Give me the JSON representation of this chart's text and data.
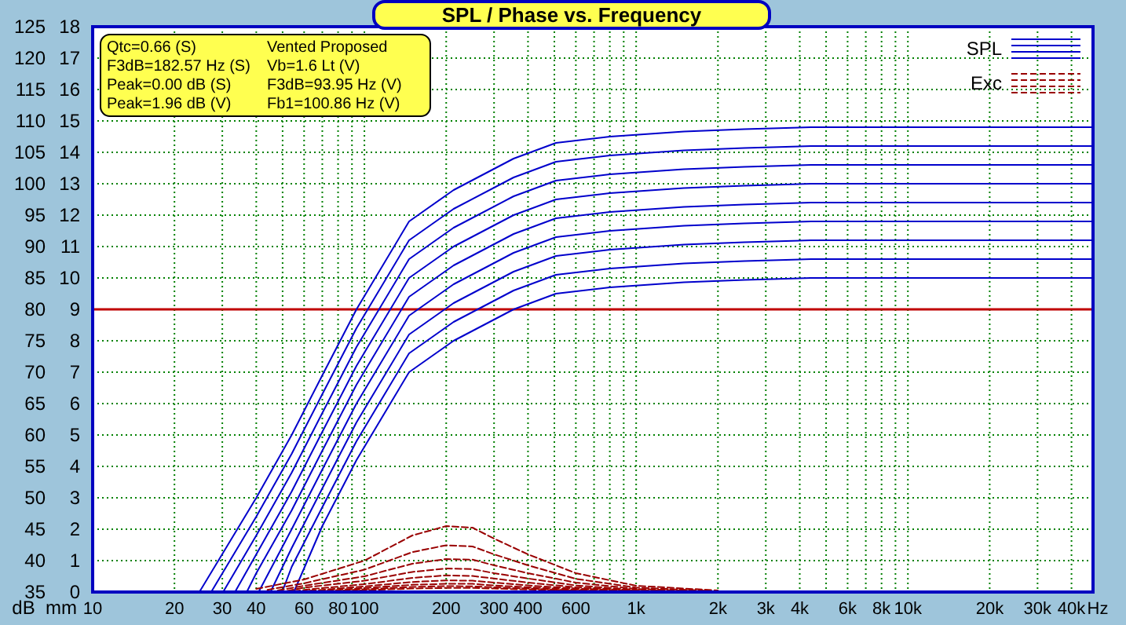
{
  "chart_data": {
    "type": "line",
    "title": "SPL / Phase vs. Frequency",
    "ylabel": "dB",
    "y2label": "mm",
    "annotations": [
      "Qtc=0.66 (S)",
      "F3dB=182.57 Hz (S)",
      "Peak=0.00 dB (S)",
      "Peak=1.96 dB (V)",
      "Vented Proposed",
      "Vb=1.6 Lt (V)",
      "F3dB=93.95 Hz (V)",
      "Fb1=100.86 Hz (V)"
    ],
    "log": "x",
    "grid": true,
    "legend": "top right",
    "xlim": [
      10,
      48000
    ],
    "xticks": [
      10,
      20,
      30,
      40,
      {
        "value": 50,
        "label": null
      },
      60,
      {
        "value": 70,
        "label": null
      },
      80,
      {
        "value": 90,
        "label": null
      },
      100,
      200,
      300,
      400,
      {
        "value": 500,
        "label": null
      },
      600,
      {
        "value": 700,
        "label": null
      },
      {
        "value": 800,
        "label": null
      },
      {
        "value": 900,
        "label": null
      },
      {
        "value": 1000,
        "label": "1k"
      },
      {
        "value": 2000,
        "label": "2k"
      },
      {
        "value": 3000,
        "label": "3k"
      },
      {
        "value": 4000,
        "label": "4k"
      },
      {
        "value": 5000,
        "label": null
      },
      {
        "value": 6000,
        "label": "6k"
      },
      {
        "value": 7000,
        "label": null
      },
      {
        "value": 8000,
        "label": "8k"
      },
      {
        "value": 9000,
        "label": null
      },
      {
        "value": 10000,
        "label": "10k"
      },
      {
        "value": 20000,
        "label": "20k"
      },
      {
        "value": 30000,
        "label": "30k"
      },
      {
        "value": 40000,
        "label": "40k"
      }
    ],
    "xlabel": "Hz",
    "ylim": [
      35,
      125
    ],
    "yticks": [
      35,
      40,
      45,
      50,
      55,
      60,
      65,
      70,
      75,
      80,
      85,
      90,
      95,
      100,
      105,
      110,
      115,
      120,
      125
    ],
    "y2lim": [
      0,
      18
    ],
    "y2ticks": [
      0,
      1,
      2,
      3,
      4,
      5,
      6,
      7,
      8,
      9,
      10,
      11,
      12,
      13,
      14,
      15,
      16,
      17,
      18
    ],
    "ref_lines": [
      {
        "axis": "y",
        "value": 80,
        "color": "#c00000"
      }
    ],
    "series": [
      {
        "name": "SPL",
        "color": "#0000cc",
        "x": [
          24.7,
          40,
          54,
          70,
          93.5,
          146,
          213,
          354,
          507,
          800,
          1500,
          2500,
          4400,
          48000
        ],
        "values": [
          35,
          50,
          60,
          69.5,
          80,
          94,
          99,
          104,
          106.5,
          107.5,
          108.3,
          108.7,
          109,
          109
        ]
      },
      {
        "color": "#0000cc",
        "x": [
          27.3,
          40,
          54,
          70,
          93.5,
          146,
          213,
          354,
          507,
          800,
          1500,
          2500,
          4400,
          48000
        ],
        "values": [
          35,
          47,
          57,
          66.5,
          77,
          91,
          96,
          101,
          103.5,
          104.5,
          105.3,
          105.7,
          106,
          106
        ]
      },
      {
        "color": "#0000cc",
        "x": [
          30.2,
          40,
          54,
          70,
          93.5,
          146,
          213,
          354,
          507,
          800,
          1500,
          2500,
          4400,
          48000
        ],
        "values": [
          35,
          44,
          54,
          63.5,
          74,
          88,
          93,
          98,
          100.5,
          101.5,
          102.3,
          102.7,
          103,
          103
        ]
      },
      {
        "color": "#0000cc",
        "x": [
          33.4,
          40,
          54,
          70,
          93.5,
          146,
          213,
          354,
          507,
          800,
          1500,
          2500,
          4400,
          48000
        ],
        "values": [
          35,
          41,
          51,
          60.5,
          71,
          85,
          90,
          95,
          97.5,
          98.5,
          99.3,
          99.7,
          100,
          100
        ]
      },
      {
        "color": "#0000cc",
        "x": [
          36.9,
          40,
          54,
          70,
          93.5,
          146,
          213,
          354,
          507,
          800,
          1500,
          2500,
          4400,
          48000
        ],
        "values": [
          35,
          38,
          48,
          57.5,
          68,
          82,
          87,
          92,
          94.5,
          95.5,
          96.3,
          96.7,
          97,
          97
        ]
      },
      {
        "color": "#0000cc",
        "x": [
          40.8,
          54,
          70,
          93.5,
          146,
          213,
          354,
          507,
          800,
          1500,
          2500,
          4400,
          48000
        ],
        "values": [
          35,
          45,
          54.5,
          65,
          79,
          84,
          89,
          91.5,
          92.5,
          93.3,
          93.7,
          94,
          94
        ]
      },
      {
        "color": "#0000cc",
        "x": [
          45.1,
          54,
          70,
          93.5,
          146,
          213,
          354,
          507,
          800,
          1500,
          2500,
          4400,
          48000
        ],
        "values": [
          35,
          42,
          51.5,
          62,
          76,
          81,
          86,
          88.5,
          89.5,
          90.3,
          90.7,
          91,
          91
        ]
      },
      {
        "color": "#0000cc",
        "x": [
          49.8,
          54,
          70,
          93.5,
          146,
          213,
          354,
          507,
          800,
          1500,
          2500,
          4400,
          48000
        ],
        "values": [
          35,
          39,
          48.5,
          59,
          73,
          78,
          83,
          85.5,
          86.5,
          87.3,
          87.7,
          88,
          88
        ]
      },
      {
        "color": "#0000cc",
        "x": [
          55,
          70,
          93.5,
          146,
          213,
          354,
          507,
          800,
          1500,
          2500,
          4400,
          48000
        ],
        "values": [
          35,
          45.5,
          56,
          70,
          75,
          80,
          82.5,
          83.5,
          84.3,
          84.7,
          85,
          85
        ]
      },
      {
        "name": "Exc",
        "color": "#990000",
        "axis": "y2",
        "line_style": "dashed",
        "x": [
          40,
          60,
          100,
          150,
          200,
          250,
          300,
          400,
          600,
          1000,
          2000
        ],
        "values": [
          0.1,
          0.4,
          1.0,
          1.8,
          2.1,
          2.05,
          1.7,
          1.2,
          0.6,
          0.2,
          0.05
        ]
      },
      {
        "color": "#990000",
        "axis": "y2",
        "line_style": "dashed",
        "x": [
          44,
          60,
          100,
          150,
          200,
          250,
          300,
          400,
          600,
          1000,
          1850
        ],
        "values": [
          0.07,
          0.28,
          0.71,
          1.27,
          1.49,
          1.45,
          1.2,
          0.85,
          0.42,
          0.14,
          0.04
        ]
      },
      {
        "color": "#990000",
        "axis": "y2",
        "line_style": "dashed",
        "x": [
          48,
          60,
          100,
          150,
          200,
          250,
          300,
          400,
          600,
          1000,
          1700
        ],
        "values": [
          0.05,
          0.2,
          0.5,
          0.9,
          1.05,
          1.03,
          0.85,
          0.6,
          0.3,
          0.1,
          0.03
        ]
      },
      {
        "color": "#990000",
        "axis": "y2",
        "line_style": "dashed",
        "x": [
          52,
          60,
          100,
          150,
          200,
          250,
          300,
          400,
          600,
          1000,
          1550
        ],
        "values": [
          0.04,
          0.14,
          0.36,
          0.64,
          0.75,
          0.73,
          0.6,
          0.43,
          0.21,
          0.07,
          0.02
        ]
      },
      {
        "color": "#990000",
        "axis": "y2",
        "line_style": "dashed",
        "x": [
          55,
          65,
          100,
          150,
          200,
          250,
          300,
          400,
          600,
          1000,
          1400
        ],
        "values": [
          0.03,
          0.1,
          0.25,
          0.45,
          0.53,
          0.51,
          0.43,
          0.3,
          0.15,
          0.05,
          0.01
        ]
      },
      {
        "color": "#990000",
        "axis": "y2",
        "line_style": "dashed",
        "x": [
          58,
          70,
          100,
          150,
          200,
          250,
          300,
          400,
          600,
          1000,
          1300
        ],
        "values": [
          0.02,
          0.07,
          0.18,
          0.32,
          0.37,
          0.36,
          0.3,
          0.21,
          0.11,
          0.04,
          0.01
        ]
      },
      {
        "color": "#990000",
        "axis": "y2",
        "line_style": "dashed",
        "x": [
          62,
          75,
          100,
          150,
          200,
          250,
          300,
          400,
          600,
          1000,
          1200
        ],
        "values": [
          0.01,
          0.05,
          0.13,
          0.23,
          0.26,
          0.26,
          0.21,
          0.15,
          0.08,
          0.03,
          0.01
        ]
      },
      {
        "color": "#990000",
        "axis": "y2",
        "line_style": "dashed",
        "x": [
          66,
          80,
          100,
          150,
          200,
          250,
          300,
          400,
          600,
          900,
          1100
        ],
        "values": [
          0.01,
          0.04,
          0.09,
          0.16,
          0.19,
          0.18,
          0.15,
          0.11,
          0.05,
          0.02,
          0
        ]
      },
      {
        "color": "#990000",
        "axis": "y2",
        "line_style": "dashed",
        "x": [
          70,
          85,
          100,
          150,
          200,
          250,
          300,
          400,
          600,
          850,
          1050
        ],
        "values": [
          0.01,
          0.03,
          0.06,
          0.11,
          0.13,
          0.13,
          0.11,
          0.08,
          0.04,
          0.01,
          0
        ]
      }
    ]
  }
}
